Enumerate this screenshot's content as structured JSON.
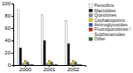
{
  "chart_data": {
    "type": "bar",
    "categories": [
      "2000",
      "2001",
      "2002"
    ],
    "series": [
      {
        "name": "Penicillins",
        "color": "#ffffff",
        "values": [
          90,
          82,
          72
        ]
      },
      {
        "name": "Macrolides",
        "color": "#111111",
        "values": [
          28,
          40,
          35
        ]
      },
      {
        "name": "Quinolones",
        "color": "#888888",
        "values": [
          3,
          3,
          3
        ]
      },
      {
        "name": "Cephalosporins",
        "color": "#e8c800",
        "values": [
          8,
          8,
          8
        ]
      },
      {
        "name": "Aminoglycosides",
        "color": "#2255cc",
        "values": [
          5,
          5,
          5
        ]
      },
      {
        "name": "Fluoroquinolones /\nSulphonamides",
        "color": "#cc2200",
        "values": [
          1,
          1,
          1
        ]
      },
      {
        "name": "Other",
        "color": "#226622",
        "values": [
          1,
          1,
          1
        ]
      }
    ],
    "ylim": [
      0,
      100
    ],
    "yticks": [
      0,
      20,
      40,
      60,
      80,
      100
    ],
    "grid": false,
    "legend": "upper right"
  }
}
